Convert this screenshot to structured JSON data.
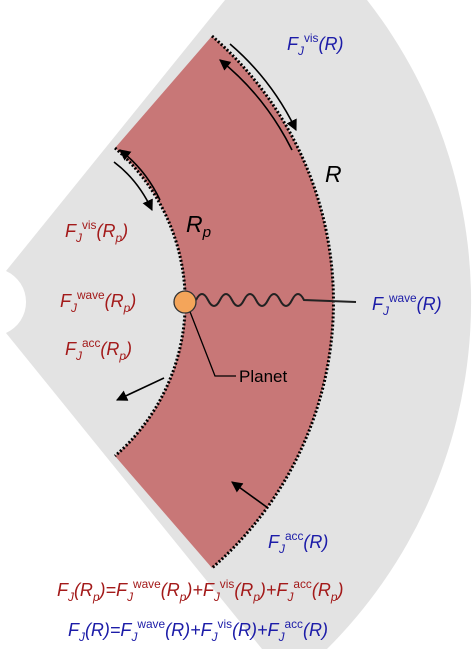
{
  "labels": {
    "vis_R": [
      "F",
      "J",
      "vis",
      "(R)"
    ],
    "R": "R",
    "Rp": [
      "R",
      "p"
    ],
    "vis_Rp": [
      "F",
      "J",
      "vis",
      "(R",
      "p",
      ")"
    ],
    "wave_Rp": [
      "F",
      "J",
      "wave",
      "(R",
      "p",
      ")"
    ],
    "wave_R": [
      "F",
      "J",
      "wave",
      "(R)"
    ],
    "acc_Rp": [
      "F",
      "J",
      "acc",
      "(R",
      "p",
      ")"
    ],
    "planet": "Planet",
    "acc_R": [
      "F",
      "J",
      "acc",
      "(R)"
    ]
  },
  "equations": {
    "Rp": [
      "F",
      "J",
      "(R",
      "p",
      ")=F",
      "J",
      "wave",
      "(R",
      "p",
      ")+F",
      "J",
      "vis",
      "(R",
      "p",
      ")+F",
      "J",
      "acc",
      "(R",
      "p",
      ")"
    ],
    "R": [
      "F",
      "J",
      "(R)=F",
      "J",
      "wave",
      "(R)+F",
      "J",
      "vis",
      "(R)+F",
      "J",
      "acc",
      "(R)"
    ]
  }
}
